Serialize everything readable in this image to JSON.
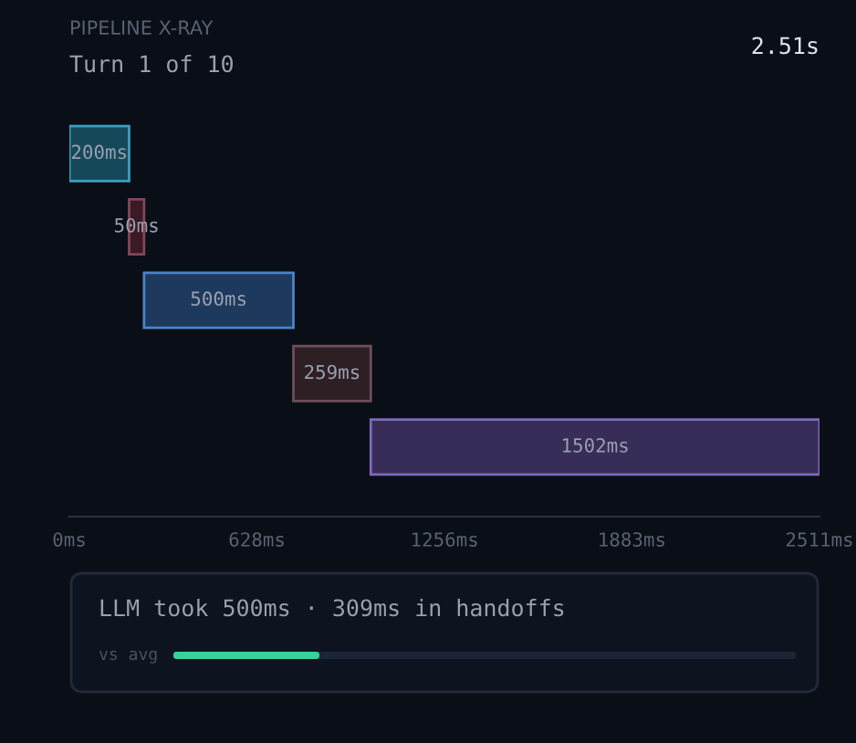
{
  "chart_data": {
    "type": "bar",
    "orientation": "horizontal",
    "title": "PIPELINE X-RAY",
    "subtitle": "Turn 1 of 10",
    "categories": [
      null,
      null,
      null,
      null,
      null
    ],
    "base": [
      0,
      200,
      250,
      750,
      1009
    ],
    "values": [
      200,
      50,
      500,
      259,
      1502
    ],
    "colors": [
      "#15495a",
      "#3a1a24",
      "#1d3a5e",
      "#2e1f24",
      "#372d58"
    ],
    "value_labels": [
      "200ms",
      "50ms",
      "500ms",
      "259ms",
      "1502ms"
    ],
    "xlim": [
      0,
      2511
    ],
    "xticks": [
      {
        "value": 0,
        "label": "0ms"
      },
      {
        "value": 628,
        "label": "628ms"
      },
      {
        "value": 1256,
        "label": "1256ms"
      },
      {
        "value": 1883,
        "label": "1883ms"
      },
      {
        "value": 2511,
        "label": "2511ms"
      }
    ],
    "annotations": [
      "2.51s",
      "LLM took 500ms · 309ms in handoffs",
      "vs avg"
    ],
    "grid": false
  }
}
